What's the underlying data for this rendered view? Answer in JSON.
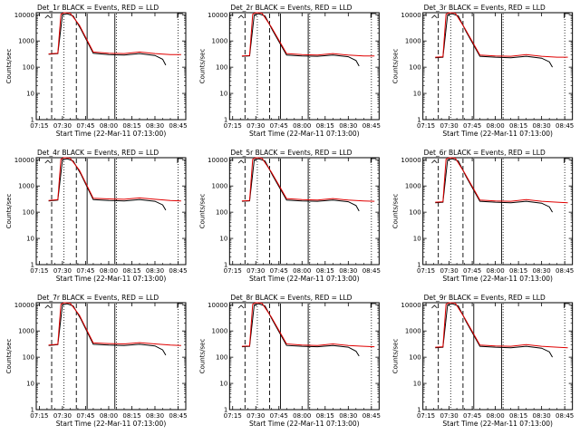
{
  "chart_data": [
    {
      "type": "line",
      "title": "Det_1r BLACK = Events, RED = LLD",
      "xlabel": "Start Time (22-Mar-11 07:13:00)",
      "ylabel": "Counts/sec",
      "x_ticks": [
        "07:15",
        "07:30",
        "07:45",
        "08:00",
        "08:15",
        "08:30",
        "08:45"
      ],
      "y_ticks": [
        "1",
        "10",
        "100",
        "1000",
        "10000"
      ],
      "x_range_min": [
        433,
        530
      ],
      "y_range": [
        1,
        12000
      ],
      "start_min": 440.5,
      "end_min": 527,
      "series": [
        {
          "name": "Events",
          "color": "#000000",
          "t": [
            441,
            447,
            450,
            453,
            457,
            462,
            470,
            480,
            490,
            500,
            510,
            515,
            517
          ],
          "v": [
            310,
            330,
            9800,
            11000,
            9000,
            2800,
            340,
            300,
            290,
            330,
            280,
            200,
            120
          ]
        },
        {
          "name": "LLD",
          "color": "#e00000",
          "t": [
            441,
            447,
            449,
            451,
            455,
            461,
            470,
            480,
            490,
            500,
            510,
            520,
            527
          ],
          "v": [
            320,
            340,
            10500,
            12000,
            11500,
            4000,
            380,
            340,
            330,
            380,
            330,
            300,
            300
          ]
        }
      ],
      "markers": {
        "dashed_t": [
          443,
          459
        ],
        "dotted_t": [
          451,
          485,
          525
        ],
        "solid_t": [
          466,
          484
        ]
      }
    },
    {
      "type": "line",
      "title": "Det_2r BLACK = Events, RED = LLD",
      "xlabel": "Start Time (22-Mar-11 07:13:00)",
      "ylabel": "Counts/sec",
      "x_ticks": [
        "07:15",
        "07:30",
        "07:45",
        "08:00",
        "08:15",
        "08:30",
        "08:45"
      ],
      "y_ticks": [
        "1",
        "10",
        "100",
        "1000",
        "10000"
      ],
      "x_range_min": [
        433,
        530
      ],
      "y_range": [
        1,
        12000
      ],
      "start_min": 440.5,
      "end_min": 527,
      "series": [
        {
          "name": "Events",
          "color": "#000000",
          "t": [
            441,
            446,
            449,
            452,
            456,
            461,
            470,
            480,
            490,
            500,
            510,
            515,
            517
          ],
          "v": [
            260,
            270,
            9800,
            11000,
            9000,
            2500,
            290,
            270,
            260,
            290,
            250,
            180,
            110
          ]
        },
        {
          "name": "LLD",
          "color": "#e00000",
          "t": [
            441,
            446,
            448,
            450,
            454,
            460,
            470,
            480,
            490,
            500,
            510,
            520,
            527
          ],
          "v": [
            270,
            280,
            10500,
            12000,
            11500,
            3500,
            330,
            300,
            290,
            330,
            290,
            270,
            270
          ]
        }
      ],
      "markers": {
        "dashed_t": [
          443,
          459
        ],
        "dotted_t": [
          451,
          485,
          525
        ],
        "solid_t": [
          466,
          484
        ]
      }
    },
    {
      "type": "line",
      "title": "Det_3r BLACK = Events, RED = LLD",
      "xlabel": "Start Time (22-Mar-11 07:13:00)",
      "ylabel": "Counts/sec",
      "x_ticks": [
        "07:15",
        "07:30",
        "07:45",
        "08:00",
        "08:15",
        "08:30",
        "08:45"
      ],
      "y_ticks": [
        "1",
        "10",
        "100",
        "1000",
        "10000"
      ],
      "x_range_min": [
        433,
        530
      ],
      "y_range": [
        1,
        12000
      ],
      "start_min": 440.5,
      "end_min": 527,
      "series": [
        {
          "name": "Events",
          "color": "#000000",
          "t": [
            441,
            446,
            449,
            452,
            456,
            461,
            470,
            480,
            490,
            500,
            510,
            515,
            517
          ],
          "v": [
            230,
            240,
            9800,
            11000,
            9000,
            2300,
            260,
            240,
            230,
            260,
            220,
            160,
            100
          ]
        },
        {
          "name": "LLD",
          "color": "#e00000",
          "t": [
            441,
            446,
            448,
            450,
            454,
            460,
            470,
            480,
            490,
            500,
            510,
            520,
            527
          ],
          "v": [
            240,
            250,
            10500,
            12000,
            11500,
            3200,
            290,
            270,
            260,
            300,
            260,
            240,
            240
          ]
        }
      ],
      "markers": {
        "dashed_t": [
          443,
          459
        ],
        "dotted_t": [
          451,
          485,
          525
        ],
        "solid_t": [
          466,
          484
        ]
      }
    },
    {
      "type": "line",
      "title": "Det_4r BLACK = Events, RED = LLD",
      "xlabel": "Start Time (22-Mar-11 07:13:00)",
      "ylabel": "Counts/sec",
      "x_ticks": [
        "07:15",
        "07:30",
        "07:45",
        "08:00",
        "08:15",
        "08:30",
        "08:45"
      ],
      "y_ticks": [
        "1",
        "10",
        "100",
        "1000",
        "10000"
      ],
      "x_range_min": [
        433,
        530
      ],
      "y_range": [
        1,
        12000
      ],
      "start_min": 440.5,
      "end_min": 527,
      "series": [
        {
          "name": "Events",
          "color": "#000000",
          "t": [
            441,
            447,
            450,
            453,
            457,
            462,
            470,
            480,
            490,
            500,
            510,
            515,
            517
          ],
          "v": [
            270,
            290,
            9800,
            11000,
            9000,
            2800,
            300,
            280,
            270,
            300,
            260,
            190,
            120
          ]
        },
        {
          "name": "LLD",
          "color": "#e00000",
          "t": [
            441,
            447,
            449,
            451,
            455,
            461,
            470,
            480,
            490,
            500,
            510,
            520,
            527
          ],
          "v": [
            280,
            300,
            10500,
            12000,
            11500,
            4000,
            340,
            320,
            310,
            350,
            310,
            280,
            270
          ]
        }
      ],
      "markers": {
        "dashed_t": [
          443,
          459
        ],
        "dotted_t": [
          451,
          485,
          525
        ],
        "solid_t": [
          466,
          484
        ]
      }
    },
    {
      "type": "line",
      "title": "Det_5r BLACK = Events, RED = LLD",
      "xlabel": "Start Time (22-Mar-11 07:13:00)",
      "ylabel": "Counts/sec",
      "x_ticks": [
        "07:15",
        "07:30",
        "07:45",
        "08:00",
        "08:15",
        "08:30",
        "08:45"
      ],
      "y_ticks": [
        "1",
        "10",
        "100",
        "1000",
        "10000"
      ],
      "x_range_min": [
        433,
        530
      ],
      "y_range": [
        1,
        12000
      ],
      "start_min": 440.5,
      "end_min": 527,
      "series": [
        {
          "name": "Events",
          "color": "#000000",
          "t": [
            441,
            446,
            449,
            452,
            456,
            461,
            470,
            480,
            490,
            500,
            510,
            515,
            517
          ],
          "v": [
            260,
            270,
            9800,
            11000,
            9000,
            2500,
            290,
            270,
            260,
            290,
            250,
            180,
            110
          ]
        },
        {
          "name": "LLD",
          "color": "#e00000",
          "t": [
            441,
            446,
            448,
            450,
            454,
            460,
            470,
            480,
            490,
            500,
            510,
            520,
            527
          ],
          "v": [
            270,
            280,
            10500,
            12000,
            11500,
            3500,
            330,
            300,
            290,
            330,
            290,
            270,
            260
          ]
        }
      ],
      "markers": {
        "dashed_t": [
          443,
          459
        ],
        "dotted_t": [
          451,
          485,
          525
        ],
        "solid_t": [
          466,
          484
        ]
      }
    },
    {
      "type": "line",
      "title": "Det_6r BLACK = Events, RED = LLD",
      "xlabel": "Start Time (22-Mar-11 07:13:00)",
      "ylabel": "Counts/sec",
      "x_ticks": [
        "07:15",
        "07:30",
        "07:45",
        "08:00",
        "08:15",
        "08:30",
        "08:45"
      ],
      "y_ticks": [
        "1",
        "10",
        "100",
        "1000",
        "10000"
      ],
      "x_range_min": [
        433,
        530
      ],
      "y_range": [
        1,
        12000
      ],
      "start_min": 440.5,
      "end_min": 527,
      "series": [
        {
          "name": "Events",
          "color": "#000000",
          "t": [
            441,
            446,
            449,
            452,
            456,
            461,
            470,
            480,
            490,
            500,
            510,
            515,
            517
          ],
          "v": [
            230,
            240,
            9800,
            11000,
            9000,
            2300,
            260,
            240,
            230,
            260,
            220,
            160,
            100
          ]
        },
        {
          "name": "LLD",
          "color": "#e00000",
          "t": [
            441,
            446,
            448,
            450,
            454,
            460,
            470,
            480,
            490,
            500,
            510,
            520,
            527
          ],
          "v": [
            240,
            250,
            10500,
            12000,
            11500,
            3200,
            290,
            270,
            260,
            300,
            260,
            240,
            230
          ]
        }
      ],
      "markers": {
        "dashed_t": [
          443,
          459
        ],
        "dotted_t": [
          451,
          485,
          525
        ],
        "solid_t": [
          466,
          484
        ]
      }
    },
    {
      "type": "line",
      "title": "Det_7r BLACK = Events, RED = LLD",
      "xlabel": "Start Time (22-Mar-11 07:13:00)",
      "ylabel": "Counts/sec",
      "x_ticks": [
        "07:15",
        "07:30",
        "07:45",
        "08:00",
        "08:15",
        "08:30",
        "08:45"
      ],
      "y_ticks": [
        "1",
        "10",
        "100",
        "1000",
        "10000"
      ],
      "x_range_min": [
        433,
        530
      ],
      "y_range": [
        1,
        12000
      ],
      "start_min": 440.5,
      "end_min": 527,
      "series": [
        {
          "name": "Events",
          "color": "#000000",
          "t": [
            441,
            447,
            450,
            453,
            457,
            462,
            470,
            480,
            490,
            500,
            510,
            515,
            517
          ],
          "v": [
            280,
            300,
            9800,
            11000,
            9000,
            2800,
            310,
            290,
            280,
            310,
            270,
            190,
            120
          ]
        },
        {
          "name": "LLD",
          "color": "#e00000",
          "t": [
            441,
            447,
            449,
            451,
            455,
            461,
            470,
            480,
            490,
            500,
            510,
            520,
            527
          ],
          "v": [
            290,
            310,
            10500,
            12000,
            11500,
            4000,
            350,
            330,
            320,
            360,
            320,
            290,
            280
          ]
        }
      ],
      "markers": {
        "dashed_t": [
          443,
          459
        ],
        "dotted_t": [
          451,
          485,
          525
        ],
        "solid_t": [
          466,
          484
        ]
      }
    },
    {
      "type": "line",
      "title": "Det_8r BLACK = Events, RED = LLD",
      "xlabel": "Start Time (22-Mar-11 07:13:00)",
      "ylabel": "Counts/sec",
      "x_ticks": [
        "07:15",
        "07:30",
        "07:45",
        "08:00",
        "08:15",
        "08:30",
        "08:45"
      ],
      "y_ticks": [
        "1",
        "10",
        "100",
        "1000",
        "10000"
      ],
      "x_range_min": [
        433,
        530
      ],
      "y_range": [
        1,
        12000
      ],
      "start_min": 440.5,
      "end_min": 527,
      "series": [
        {
          "name": "Events",
          "color": "#000000",
          "t": [
            441,
            446,
            449,
            452,
            456,
            461,
            470,
            480,
            490,
            500,
            510,
            515,
            517
          ],
          "v": [
            250,
            260,
            9800,
            11000,
            9000,
            2500,
            280,
            260,
            250,
            280,
            240,
            170,
            110
          ]
        },
        {
          "name": "LLD",
          "color": "#e00000",
          "t": [
            441,
            446,
            448,
            450,
            454,
            460,
            470,
            480,
            490,
            500,
            510,
            520,
            527
          ],
          "v": [
            260,
            270,
            10500,
            12000,
            11500,
            3500,
            320,
            290,
            280,
            320,
            280,
            260,
            250
          ]
        }
      ],
      "markers": {
        "dashed_t": [
          443,
          459
        ],
        "dotted_t": [
          451,
          485,
          525
        ],
        "solid_t": [
          466,
          484
        ]
      }
    },
    {
      "type": "line",
      "title": "Det_9r BLACK = Events, RED = LLD",
      "xlabel": "Start Time (22-Mar-11 07:13:00)",
      "ylabel": "Counts/sec",
      "x_ticks": [
        "07:15",
        "07:30",
        "07:45",
        "08:00",
        "08:15",
        "08:30",
        "08:45"
      ],
      "y_ticks": [
        "1",
        "10",
        "100",
        "1000",
        "10000"
      ],
      "x_range_min": [
        433,
        530
      ],
      "y_range": [
        1,
        12000
      ],
      "start_min": 440.5,
      "end_min": 527,
      "series": [
        {
          "name": "Events",
          "color": "#000000",
          "t": [
            441,
            446,
            449,
            452,
            456,
            461,
            470,
            480,
            490,
            500,
            510,
            515,
            517
          ],
          "v": [
            230,
            240,
            9800,
            11000,
            9000,
            2300,
            260,
            240,
            230,
            260,
            220,
            160,
            100
          ]
        },
        {
          "name": "LLD",
          "color": "#e00000",
          "t": [
            441,
            446,
            448,
            450,
            454,
            460,
            470,
            480,
            490,
            500,
            510,
            520,
            527
          ],
          "v": [
            240,
            250,
            10500,
            12000,
            11500,
            3200,
            290,
            270,
            260,
            300,
            260,
            240,
            230
          ]
        }
      ],
      "markers": {
        "dashed_t": [
          443,
          459
        ],
        "dotted_t": [
          451,
          485,
          525
        ],
        "solid_t": [
          466,
          484
        ]
      }
    }
  ]
}
